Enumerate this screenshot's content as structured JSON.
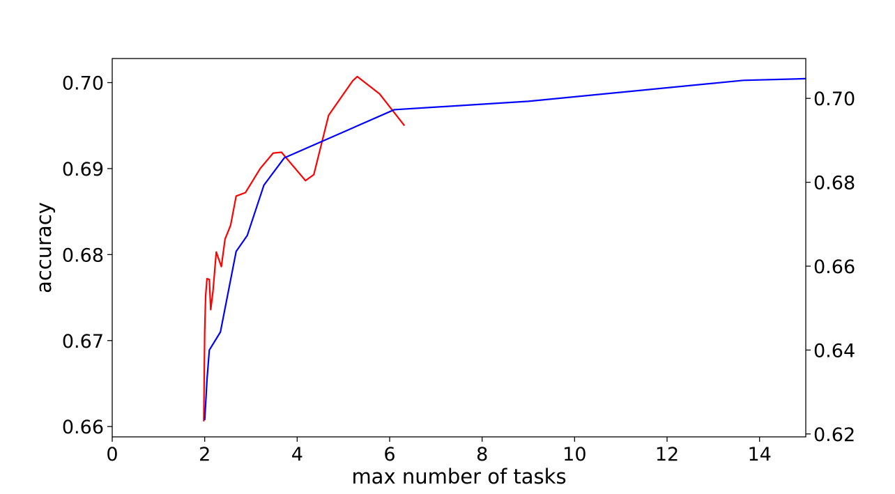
{
  "chart_data": {
    "type": "line",
    "xlabel": "max number of tasks",
    "ylabel": "accuracy",
    "y2label": "",
    "xlim": [
      0,
      15
    ],
    "ylim": [
      0.6588,
      0.7028
    ],
    "y2lim": [
      0.6193,
      0.7095
    ],
    "xticks": [
      0,
      2,
      4,
      6,
      8,
      10,
      12,
      14
    ],
    "xtick_labels": [
      "0",
      "2",
      "4",
      "6",
      "8",
      "10",
      "12",
      "14"
    ],
    "yticks": [
      0.66,
      0.67,
      0.68,
      0.69,
      0.7
    ],
    "ytick_labels": [
      "0.66",
      "0.67",
      "0.68",
      "0.69",
      "0.70"
    ],
    "y2ticks": [
      0.62,
      0.64,
      0.66,
      0.68,
      0.7
    ],
    "y2tick_labels": [
      "0.62",
      "0.64",
      "0.66",
      "0.68",
      "0.70"
    ],
    "grid": false,
    "legend": "none",
    "series": [
      {
        "axis": "left",
        "color": "#ff0000",
        "x": [
          1.98,
          2.0,
          2.02,
          2.05,
          2.1,
          2.13,
          2.18,
          2.25,
          2.36,
          2.44,
          2.56,
          2.68,
          2.88,
          3.2,
          3.48,
          3.66,
          4.18,
          4.36,
          4.68,
          5.2,
          5.3,
          5.78,
          6.32
        ],
        "y": [
          0.6606,
          0.671,
          0.6752,
          0.6772,
          0.6771,
          0.6736,
          0.6758,
          0.6803,
          0.6786,
          0.6818,
          0.6834,
          0.6868,
          0.6872,
          0.69,
          0.6918,
          0.6919,
          0.6886,
          0.6893,
          0.6962,
          0.7002,
          0.7007,
          0.6987,
          0.695
        ]
      },
      {
        "axis": "right",
        "color": "#0000ff",
        "x": [
          2.0,
          2.02,
          2.05,
          2.1,
          2.34,
          2.68,
          2.92,
          3.28,
          3.72,
          6.1,
          9.0,
          13.65,
          15.0
        ],
        "y": [
          0.6233,
          0.627,
          0.633,
          0.64,
          0.6443,
          0.6635,
          0.6673,
          0.6793,
          0.6858,
          0.6973,
          0.6993,
          0.7043,
          0.7047
        ]
      }
    ]
  }
}
